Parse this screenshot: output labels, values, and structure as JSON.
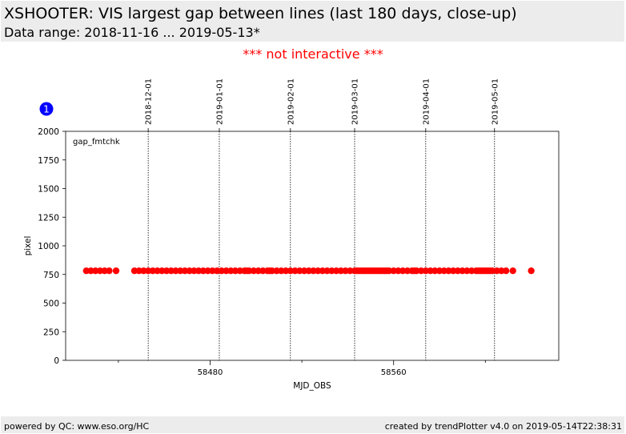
{
  "header": {
    "title": "XSHOOTER: VIS largest gap between lines (last 180 days, close-up)",
    "subtitle": "Data range: 2018-11-16 ... 2019-05-13*"
  },
  "notice": "*** not interactive ***",
  "badge": "1",
  "footer": {
    "left": "powered by QC: www.eso.org/HC",
    "right": "created by trendPlotter v4.0 on 2019-05-14T22:38:31"
  },
  "colors": {
    "marker": "#ff0000",
    "notice": "#ff0000",
    "badge": "#0000ff",
    "band": "#ececec"
  },
  "chart_data": {
    "type": "scatter",
    "xlabel": "MJD_OBS",
    "ylabel": "pixel",
    "annotation": "gap_fmtchk",
    "xlim": [
      58417,
      58632
    ],
    "ylim": [
      0,
      2000
    ],
    "yticks": [
      0,
      250,
      500,
      750,
      1000,
      1250,
      1500,
      1750,
      2000
    ],
    "xticks_major": [
      58480,
      58560
    ],
    "xticks_minor": [
      58440,
      58520,
      58600
    ],
    "grid": false,
    "date_markers": [
      {
        "label": "2018-12-01",
        "mjd": 58453
      },
      {
        "label": "2019-01-01",
        "mjd": 58484
      },
      {
        "label": "2019-02-01",
        "mjd": 58515
      },
      {
        "label": "2019-03-01",
        "mjd": 58543
      },
      {
        "label": "2019-04-01",
        "mjd": 58574
      },
      {
        "label": "2019-05-01",
        "mjd": 58604
      }
    ],
    "series": [
      {
        "marker_color": "#ff0000",
        "x": [
          58426,
          58428,
          58430,
          58432,
          58434,
          58436,
          58439,
          58447,
          58449,
          58451,
          58453,
          58455,
          58457,
          58459,
          58461,
          58463,
          58465,
          58467,
          58469,
          58471,
          58473,
          58475,
          58477,
          58479,
          58481,
          58483,
          58485,
          58487,
          58489,
          58491,
          58493,
          58495,
          58496,
          58497,
          58499,
          58501,
          58503,
          58505,
          58506,
          58507,
          58509,
          58511,
          58513,
          58515,
          58517,
          58519,
          58521,
          58523,
          58525,
          58527,
          58529,
          58531,
          58533,
          58535,
          58537,
          58539,
          58541,
          58543,
          58544,
          58545,
          58546,
          58547,
          58548,
          58549,
          58550,
          58551,
          58552,
          58553,
          58554,
          58555,
          58556,
          58557,
          58558,
          58560,
          58562,
          58564,
          58566,
          58568,
          58569,
          58570,
          58572,
          58574,
          58576,
          58578,
          58580,
          58582,
          58584,
          58586,
          58588,
          58590,
          58592,
          58594,
          58596,
          58597,
          58598,
          58599,
          58600,
          58601,
          58602,
          58603,
          58605,
          58607,
          58609,
          58612,
          58620
        ],
        "y": [
          782,
          782,
          782,
          782,
          782,
          782,
          782,
          782,
          782,
          782,
          782,
          782,
          782,
          782,
          782,
          782,
          782,
          782,
          782,
          782,
          782,
          782,
          782,
          782,
          782,
          782,
          782,
          782,
          782,
          782,
          782,
          782,
          782,
          782,
          782,
          782,
          782,
          782,
          782,
          782,
          782,
          782,
          782,
          782,
          782,
          782,
          782,
          782,
          782,
          782,
          782,
          782,
          782,
          782,
          782,
          782,
          782,
          782,
          782,
          782,
          782,
          782,
          782,
          782,
          782,
          782,
          782,
          782,
          782,
          782,
          782,
          782,
          782,
          782,
          782,
          782,
          782,
          782,
          782,
          782,
          782,
          782,
          782,
          782,
          782,
          782,
          782,
          782,
          782,
          782,
          782,
          782,
          782,
          782,
          782,
          782,
          782,
          782,
          782,
          782,
          782,
          782,
          782,
          782,
          782
        ]
      }
    ]
  }
}
